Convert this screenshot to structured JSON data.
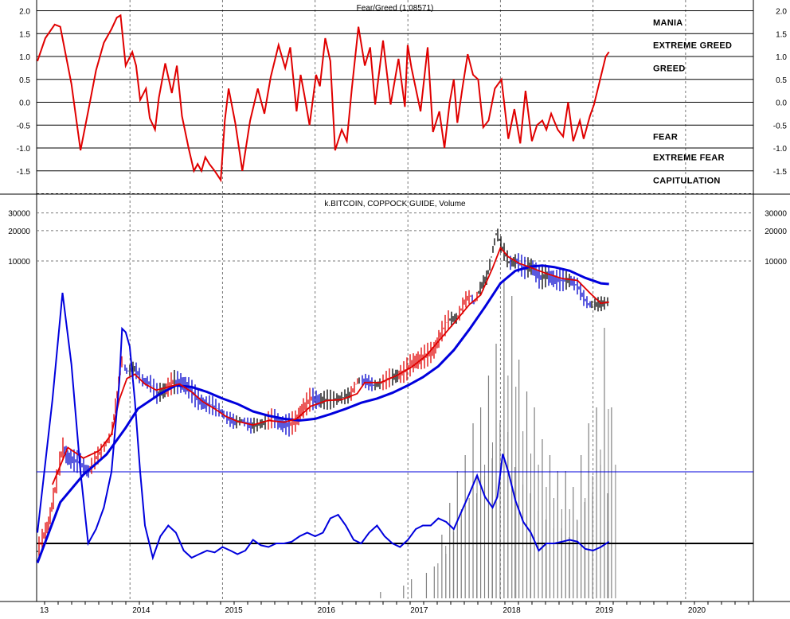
{
  "top_panel": {
    "title": "Fear/Greed (1.08571)",
    "zones": [
      "MANIA",
      "EXTREME GREED",
      "GREED",
      "FEAR",
      "EXTREME FEAR",
      "CAPITULATION"
    ]
  },
  "bottom_panel": {
    "title": "k.BITCOIN, COPPOCK GUIDE, Volume"
  },
  "x_axis": [
    "13",
    "2014",
    "2015",
    "2016",
    "2017",
    "2018",
    "2019",
    "2020"
  ],
  "colors": {
    "fear_greed": "#e00000",
    "price_up": "#000000",
    "price_down": "#0000cc",
    "price_rally": "#e00000",
    "short_ma": "#e00000",
    "long_ma": "#0000dd",
    "coppock": "#0000dd",
    "volume": "#808080"
  },
  "chart_data": [
    {
      "type": "line",
      "title": "Fear/Greed (1.08571)",
      "ylim": [
        -2,
        2
      ],
      "yticks": [
        2.0,
        1.5,
        1.0,
        0.5,
        0.0,
        -0.5,
        -1.0,
        -1.5
      ],
      "ytick_labels": [
        "2.0",
        "1.5",
        "1.0",
        "0.5",
        "0.0",
        "-0.5",
        "-1.0",
        "-1.5"
      ],
      "grid": true,
      "zones": [
        {
          "label": "MANIA",
          "y": 1.75
        },
        {
          "label": "EXTREME GREED",
          "y": 1.25
        },
        {
          "label": "GREED",
          "y": 0.75
        },
        {
          "label": "FEAR",
          "y": -0.75
        },
        {
          "label": "EXTREME FEAR",
          "y": -1.2
        },
        {
          "label": "CAPITULATION",
          "y": -1.7
        }
      ],
      "series": [
        {
          "x": [
            "2013-01-01",
            "2013-02-01",
            "2013-03-10",
            "2013-04-01",
            "2013-05-15",
            "2013-06-20",
            "2013-07-20",
            "2013-08-20",
            "2013-09-20",
            "2013-10-20",
            "2013-11-10",
            "2013-11-25",
            "2013-12-15",
            "2014-01-10",
            "2014-01-25",
            "2014-02-10",
            "2014-03-05",
            "2014-03-20",
            "2014-04-10",
            "2014-04-25",
            "2014-05-20",
            "2014-06-15",
            "2014-07-05",
            "2014-07-25",
            "2014-08-20",
            "2014-09-10",
            "2014-09-25",
            "2014-10-10",
            "2014-10-25",
            "2014-11-10",
            "2014-12-01",
            "2014-12-25",
            "2015-01-10",
            "2015-01-25",
            "2015-02-20",
            "2015-03-20",
            "2015-04-20",
            "2015-05-20",
            "2015-06-15",
            "2015-07-10",
            "2015-08-10",
            "2015-09-05",
            "2015-09-25",
            "2015-10-20",
            "2015-11-05",
            "2015-11-20",
            "2015-12-10",
            "2016-01-05",
            "2016-01-20",
            "2016-02-10",
            "2016-03-01",
            "2016-03-20",
            "2016-04-15",
            "2016-05-05",
            "2016-05-25",
            "2016-06-20",
            "2016-07-15",
            "2016-08-05",
            "2016-08-25",
            "2016-09-25",
            "2016-10-25",
            "2016-11-25",
            "2016-12-20",
            "2016-12-31",
            "2017-01-15",
            "2017-02-05",
            "2017-02-20",
            "2017-03-20",
            "2017-04-10",
            "2017-05-05",
            "2017-05-25",
            "2017-06-15",
            "2017-07-01",
            "2017-07-15",
            "2017-08-05",
            "2017-08-25",
            "2017-09-15",
            "2017-10-05",
            "2017-10-25",
            "2017-11-15",
            "2017-12-10",
            "2018-01-05",
            "2018-02-01",
            "2018-02-25",
            "2018-03-20",
            "2018-04-10",
            "2018-05-05",
            "2018-05-25",
            "2018-06-15",
            "2018-07-01",
            "2018-07-20",
            "2018-08-15",
            "2018-09-05",
            "2018-09-25",
            "2018-10-15",
            "2018-11-10",
            "2018-11-25",
            "2018-12-20",
            "2019-01-05",
            "2019-02-20",
            "2019-03-05"
          ],
          "y": [
            0.9,
            1.4,
            1.7,
            1.65,
            0.4,
            -1.05,
            -0.2,
            0.7,
            1.3,
            1.6,
            1.85,
            1.9,
            0.8,
            1.1,
            0.8,
            0.05,
            0.3,
            -0.35,
            -0.6,
            0.1,
            0.85,
            0.2,
            0.8,
            -0.3,
            -1.0,
            -1.5,
            -1.35,
            -1.5,
            -1.2,
            -1.35,
            -1.5,
            -1.7,
            -0.4,
            0.3,
            -0.45,
            -1.5,
            -0.4,
            0.3,
            -0.25,
            0.55,
            1.25,
            0.75,
            1.2,
            -0.2,
            0.6,
            0.15,
            -0.5,
            0.6,
            0.35,
            1.4,
            0.9,
            -1.05,
            -0.6,
            -0.85,
            0.3,
            1.65,
            0.8,
            1.2,
            -0.05,
            1.35,
            -0.05,
            0.95,
            -0.1,
            1.25,
            0.75,
            0.2,
            -0.2,
            1.2,
            -0.65,
            -0.2,
            -1.0,
            0.0,
            0.5,
            -0.45,
            0.35,
            1.05,
            0.6,
            0.5,
            -0.55,
            -0.4,
            0.3,
            0.5,
            -0.8,
            -0.15,
            -0.9,
            0.25,
            -0.85,
            -0.5,
            -0.4,
            -0.6,
            -0.25,
            -0.6,
            -0.75,
            0.0,
            -0.85,
            -0.4,
            -0.8,
            -0.3,
            -0.05,
            1.0,
            1.1
          ]
        }
      ]
    },
    {
      "type": "line",
      "title": "k.BITCOIN, COPPOCK GUIDE, Volume",
      "yscale": "log",
      "yticks": [
        30000,
        20000,
        10000
      ],
      "ytick_labels": [
        "30000",
        "20000",
        "10000"
      ],
      "grid": true,
      "series": [
        {
          "name": "k.BITCOIN",
          "x": [
            "2013-01-01",
            "2013-02-15",
            "2013-03-20",
            "2013-04-10",
            "2013-05-01",
            "2013-06-15",
            "2013-07-20",
            "2013-08-20",
            "2013-09-20",
            "2013-10-20",
            "2013-11-10",
            "2013-11-30",
            "2013-12-20",
            "2014-01-20",
            "2014-02-20",
            "2014-03-25",
            "2014-04-15",
            "2014-05-20",
            "2014-06-20",
            "2014-07-25",
            "2014-08-25",
            "2014-09-25",
            "2014-10-20",
            "2014-11-20",
            "2014-12-20",
            "2015-01-15",
            "2015-02-20",
            "2015-03-20",
            "2015-04-20",
            "2015-05-20",
            "2015-06-20",
            "2015-07-20",
            "2015-08-20",
            "2015-09-20",
            "2015-10-20",
            "2015-11-10",
            "2015-12-15",
            "2016-01-20",
            "2016-02-20",
            "2016-03-20",
            "2016-04-20",
            "2016-05-20",
            "2016-06-18",
            "2016-07-20",
            "2016-08-20",
            "2016-09-20",
            "2016-10-20",
            "2016-11-20",
            "2016-12-20",
            "2017-01-15",
            "2017-02-15",
            "2017-03-15",
            "2017-04-15",
            "2017-05-15",
            "2017-06-10",
            "2017-07-15",
            "2017-08-15",
            "2017-09-05",
            "2017-09-20",
            "2017-10-15",
            "2017-11-10",
            "2017-12-05",
            "2017-12-17",
            "2018-01-05",
            "2018-02-05",
            "2018-03-05",
            "2018-04-05",
            "2018-05-05",
            "2018-06-05",
            "2018-07-05",
            "2018-08-05",
            "2018-09-05",
            "2018-10-05",
            "2018-11-05",
            "2018-11-25",
            "2018-12-15",
            "2019-01-15",
            "2019-02-15",
            "2019-03-05"
          ],
          "y": [
            13,
            25,
            70,
            140,
            110,
            100,
            80,
            110,
            140,
            190,
            450,
            1000,
            800,
            850,
            650,
            600,
            480,
            520,
            630,
            610,
            540,
            420,
            380,
            370,
            330,
            280,
            250,
            260,
            230,
            235,
            250,
            280,
            240,
            235,
            260,
            330,
            430,
            410,
            420,
            420,
            440,
            470,
            650,
            640,
            580,
            610,
            690,
            720,
            800,
            950,
            1050,
            1150,
            1300,
            2000,
            2600,
            2700,
            4100,
            4500,
            3800,
            5500,
            7000,
            14000,
            19500,
            14000,
            9500,
            10000,
            8500,
            8800,
            6800,
            7200,
            6500,
            6400,
            6400,
            5500,
            4300,
            3700,
            3700,
            3800,
            4000
          ]
        },
        {
          "name": "short MA",
          "x": [
            "2013-03-01",
            "2013-05-01",
            "2013-07-01",
            "2013-09-01",
            "2013-10-20",
            "2013-11-20",
            "2013-12-20",
            "2014-01-20",
            "2014-03-01",
            "2014-04-15",
            "2014-06-01",
            "2014-07-15",
            "2014-09-01",
            "2014-10-15",
            "2014-12-01",
            "2015-01-15",
            "2015-03-01",
            "2015-05-01",
            "2015-07-01",
            "2015-09-01",
            "2015-10-20",
            "2015-12-15",
            "2016-02-15",
            "2016-04-15",
            "2016-06-15",
            "2016-07-15",
            "2016-09-15",
            "2016-11-15",
            "2017-01-15",
            "2017-03-15",
            "2017-05-15",
            "2017-07-01",
            "2017-09-01",
            "2017-10-15",
            "2017-12-01",
            "2018-01-01",
            "2018-02-01",
            "2018-03-15",
            "2018-05-01",
            "2018-07-01",
            "2018-09-01",
            "2018-11-01",
            "2018-12-20",
            "2019-02-01",
            "2019-03-05"
          ],
          "y": [
            60,
            140,
            110,
            130,
            190,
            420,
            680,
            750,
            600,
            520,
            560,
            600,
            500,
            400,
            340,
            285,
            255,
            235,
            260,
            250,
            270,
            360,
            410,
            420,
            480,
            620,
            620,
            720,
            880,
            1150,
            1750,
            2400,
            3700,
            4600,
            8500,
            13500,
            11000,
            9500,
            8600,
            7500,
            6700,
            6400,
            4800,
            3800,
            3900
          ]
        },
        {
          "name": "long MA",
          "x": [
            "2013-01-01",
            "2013-04-01",
            "2013-07-01",
            "2013-10-01",
            "2013-12-15",
            "2014-02-01",
            "2014-05-01",
            "2014-07-01",
            "2014-09-01",
            "2014-11-01",
            "2015-01-01",
            "2015-03-01",
            "2015-05-01",
            "2015-07-01",
            "2015-09-01",
            "2015-11-01",
            "2016-01-01",
            "2016-03-01",
            "2016-05-01",
            "2016-07-01",
            "2016-09-01",
            "2016-11-01",
            "2017-01-01",
            "2017-03-01",
            "2017-05-01",
            "2017-07-01",
            "2017-09-01",
            "2017-11-01",
            "2018-01-01",
            "2018-03-01",
            "2018-05-01",
            "2018-06-15",
            "2018-08-01",
            "2018-10-01",
            "2018-12-01",
            "2019-02-01",
            "2019-03-05"
          ],
          "y": [
            10,
            40,
            75,
            120,
            220,
            340,
            480,
            580,
            560,
            500,
            430,
            380,
            320,
            290,
            270,
            260,
            270,
            300,
            340,
            390,
            430,
            490,
            580,
            700,
            900,
            1300,
            2100,
            3500,
            6000,
            8000,
            8800,
            9000,
            8700,
            8000,
            6800,
            6000,
            5900
          ]
        }
      ]
    },
    {
      "type": "line",
      "title": "COPPOCK GUIDE",
      "reference_lines": [
        "upper",
        "zero"
      ],
      "series": [
        {
          "name": "COPPOCK GUIDE",
          "x": [
            "2013-01-01",
            "2013-03-01",
            "2013-04-10",
            "2013-05-15",
            "2013-06-20",
            "2013-07-20",
            "2013-08-20",
            "2013-09-20",
            "2013-10-20",
            "2013-11-20",
            "2013-12-01",
            "2013-12-15",
            "2013-12-31",
            "2014-01-20",
            "2014-02-10",
            "2014-03-01",
            "2014-04-01",
            "2014-05-01",
            "2014-06-01",
            "2014-07-01",
            "2014-08-01",
            "2014-09-01",
            "2014-10-01",
            "2014-11-01",
            "2014-12-01",
            "2015-01-01",
            "2015-02-01",
            "2015-03-01",
            "2015-04-01",
            "2015-05-01",
            "2015-06-01",
            "2015-07-01",
            "2015-08-01",
            "2015-09-01",
            "2015-10-01",
            "2015-11-01",
            "2015-12-01",
            "2016-01-01",
            "2016-02-01",
            "2016-03-01",
            "2016-04-01",
            "2016-05-01",
            "2016-06-01",
            "2016-07-01",
            "2016-08-01",
            "2016-09-01",
            "2016-10-01",
            "2016-11-01",
            "2016-12-01",
            "2017-01-01",
            "2017-02-01",
            "2017-03-01",
            "2017-04-01",
            "2017-05-01",
            "2017-06-01",
            "2017-07-01",
            "2017-08-01",
            "2017-09-01",
            "2017-10-01",
            "2017-11-01",
            "2017-12-01",
            "2017-12-20",
            "2018-01-10",
            "2018-02-01",
            "2018-03-01",
            "2018-04-01",
            "2018-05-01",
            "2018-06-01",
            "2018-07-01",
            "2018-08-01",
            "2018-09-01",
            "2018-10-01",
            "2018-11-01",
            "2018-12-01",
            "2019-01-01",
            "2019-02-01",
            "2019-03-05"
          ],
          "y": [
            0.3,
            4.0,
            7.0,
            5.0,
            2.0,
            0.0,
            0.4,
            1.0,
            2.0,
            4.5,
            6.0,
            5.9,
            5.5,
            4.0,
            2.0,
            0.5,
            -0.4,
            0.2,
            0.5,
            0.3,
            -0.2,
            -0.4,
            -0.3,
            -0.2,
            -0.25,
            -0.1,
            -0.2,
            -0.3,
            -0.2,
            0.1,
            -0.05,
            -0.1,
            0.0,
            0.0,
            0.05,
            0.2,
            0.3,
            0.2,
            0.3,
            0.7,
            0.8,
            0.5,
            0.1,
            0.0,
            0.3,
            0.5,
            0.2,
            0.0,
            -0.1,
            0.1,
            0.4,
            0.5,
            0.5,
            0.7,
            0.6,
            0.4,
            0.9,
            1.4,
            1.9,
            1.3,
            1.0,
            1.3,
            2.5,
            2.0,
            1.2,
            0.6,
            0.3,
            -0.2,
            0.0,
            0.0,
            0.05,
            0.1,
            0.05,
            -0.15,
            -0.2,
            -0.1,
            0.05
          ]
        }
      ]
    },
    {
      "type": "bar",
      "title": "Volume",
      "note": "volume bars, weekly",
      "series": [
        {
          "name": "Volume",
          "x": [
            "2016-09",
            "2016-12",
            "2017-01",
            "2017-03",
            "2017-04",
            "2017-05",
            "2017-06",
            "2017-07",
            "2017-08",
            "2017-09",
            "2017-10",
            "2017-11",
            "2017-12",
            "2018-01",
            "2018-02",
            "2018-03",
            "2018-04",
            "2018-05",
            "2018-06",
            "2018-07",
            "2018-08",
            "2018-09",
            "2018-10",
            "2018-11",
            "2018-12",
            "2019-01",
            "2019-02",
            "2019-03"
          ],
          "y": [
            0.02,
            0.04,
            0.06,
            0.08,
            0.1,
            0.2,
            0.3,
            0.4,
            0.45,
            0.55,
            0.6,
            0.7,
            0.8,
            1.0,
            0.95,
            0.75,
            0.65,
            0.6,
            0.5,
            0.45,
            0.4,
            0.4,
            0.35,
            0.45,
            0.55,
            0.6,
            0.85,
            0.6
          ]
        }
      ]
    }
  ]
}
